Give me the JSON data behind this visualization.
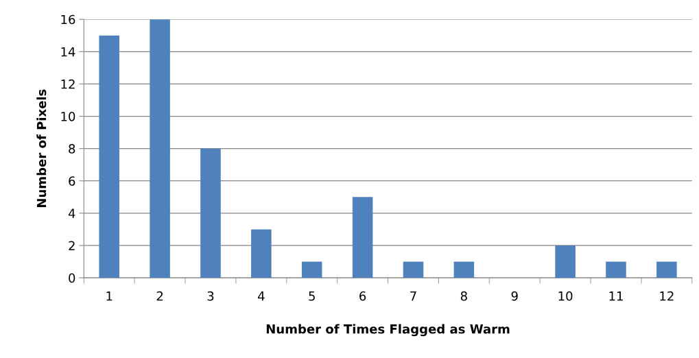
{
  "chart_data": {
    "type": "bar",
    "xlabel": "Number of Times Flagged as Warm",
    "ylabel": "Number of Pixels",
    "categories": [
      "1",
      "2",
      "3",
      "4",
      "5",
      "6",
      "7",
      "8",
      "9",
      "10",
      "11",
      "12"
    ],
    "values": [
      15,
      16,
      8,
      3,
      1,
      5,
      1,
      1,
      0,
      2,
      1,
      1
    ],
    "color": "#4f81bd",
    "ylim": [
      0,
      16
    ],
    "yticks": [
      0,
      2,
      4,
      6,
      8,
      10,
      12,
      14,
      16
    ],
    "grid": "y",
    "legend": false
  }
}
